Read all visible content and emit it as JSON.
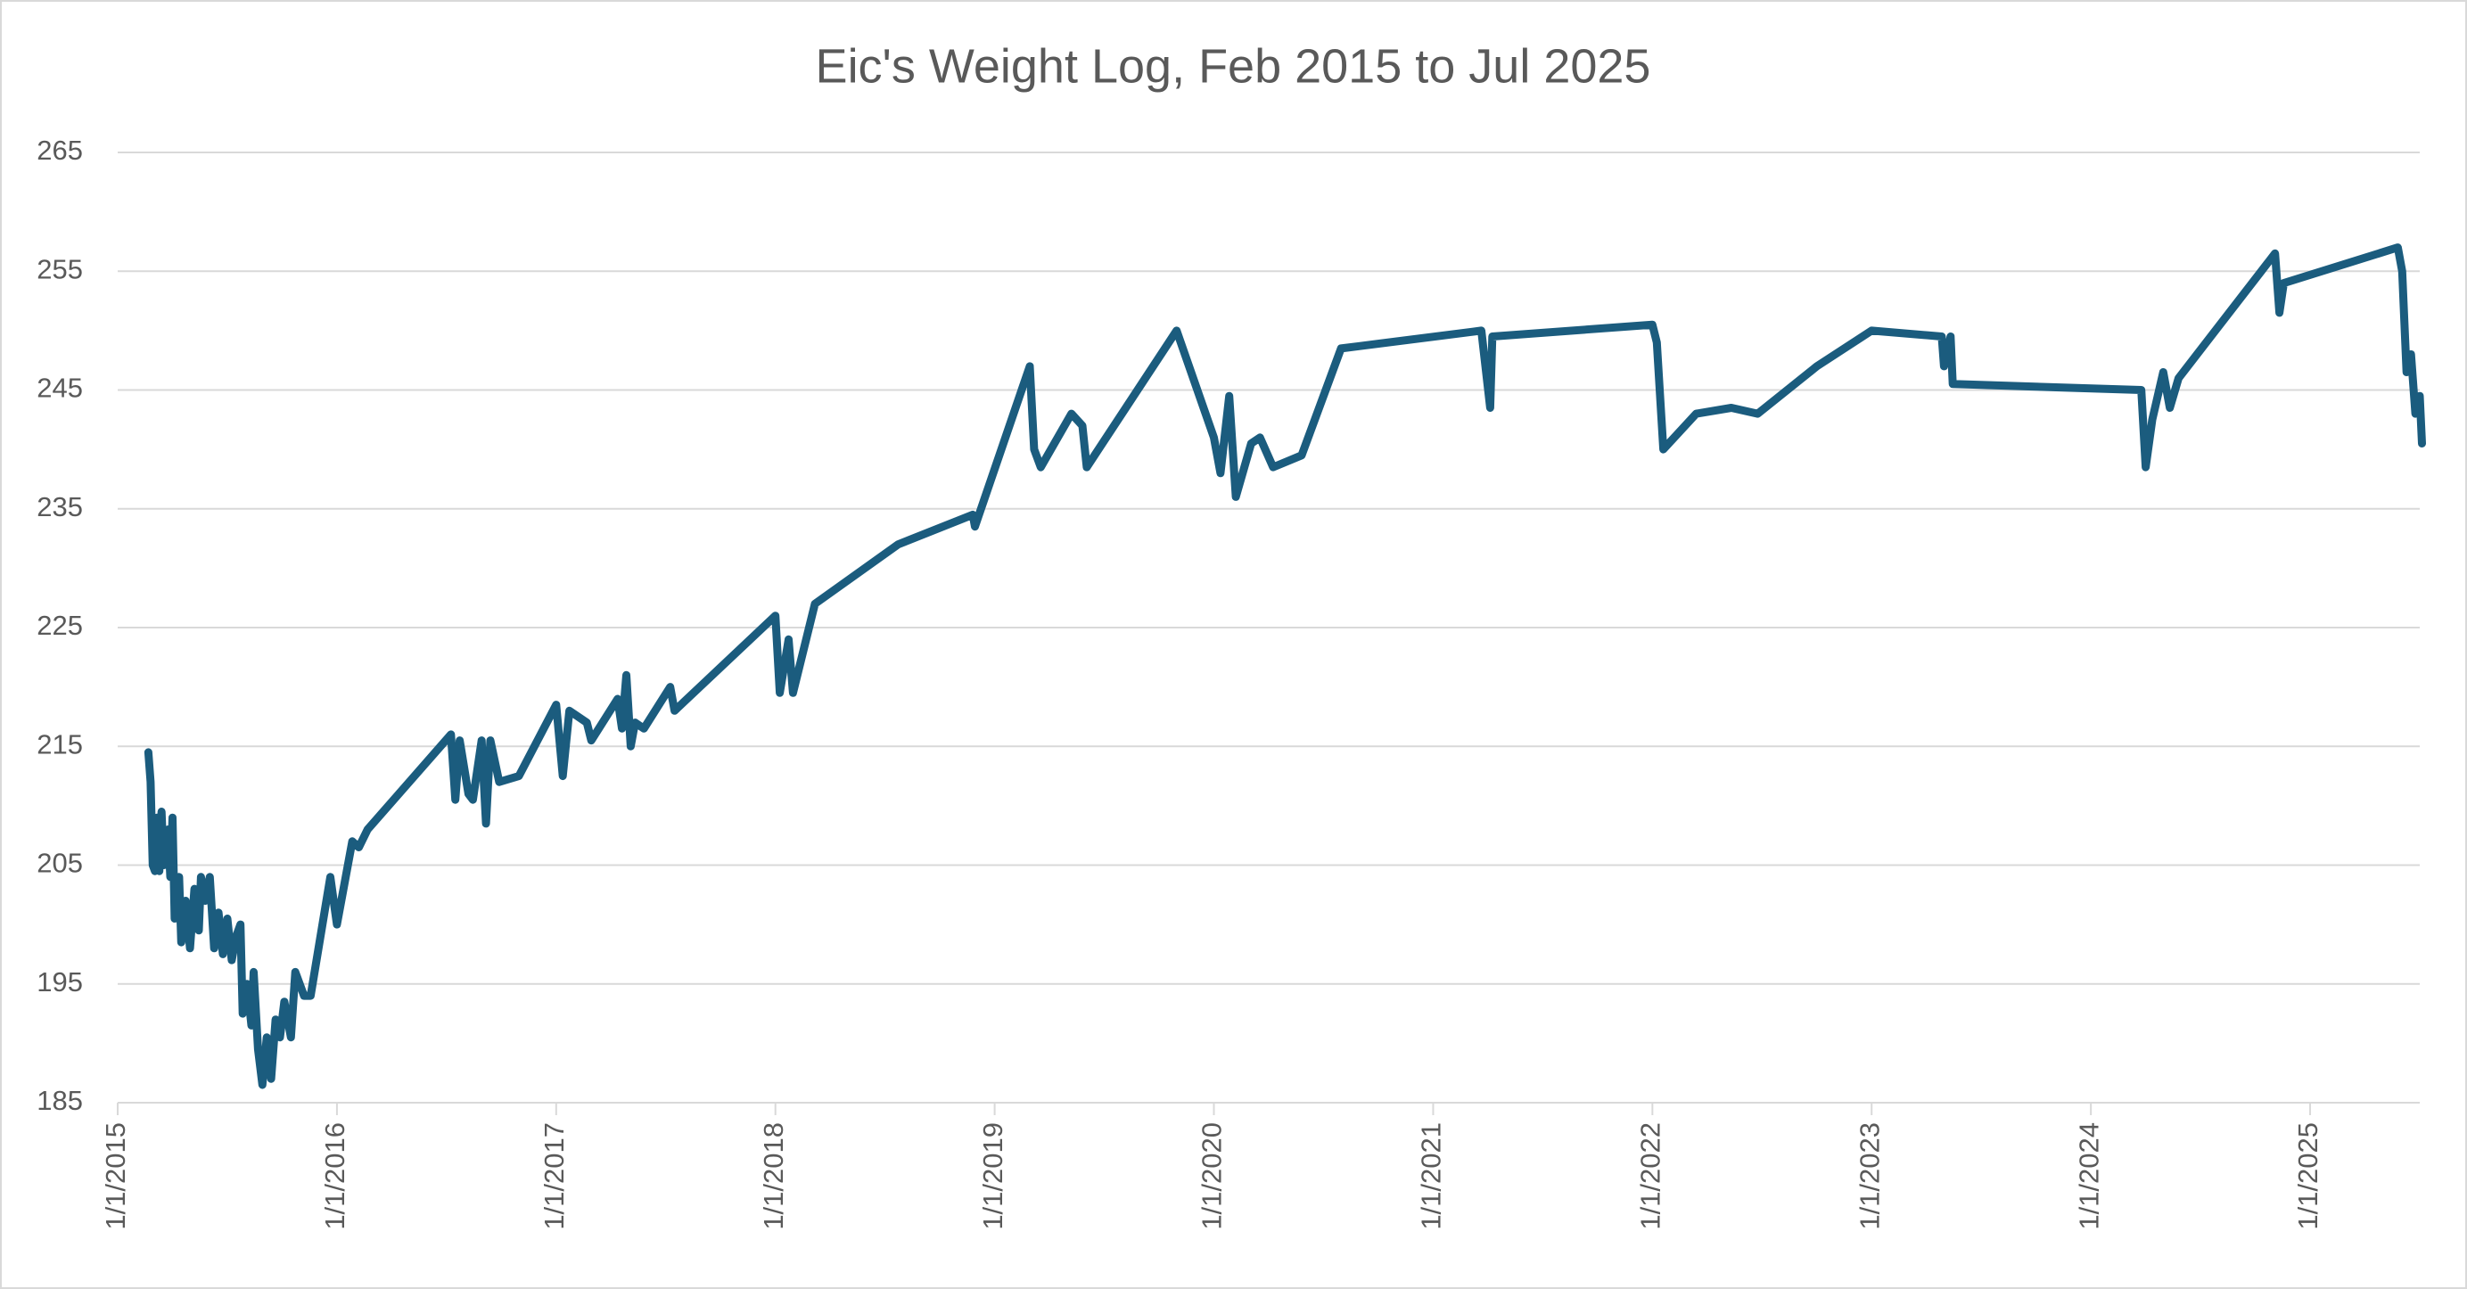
{
  "chart_data": {
    "type": "line",
    "title": "Eic's Weight Log, Feb 2015 to Jul 2025",
    "x": [
      2015.14,
      2015.15,
      2015.16,
      2015.17,
      2015.18,
      2015.19,
      2015.2,
      2015.21,
      2015.23,
      2015.24,
      2015.25,
      2015.26,
      2015.28,
      2015.29,
      2015.31,
      2015.33,
      2015.35,
      2015.37,
      2015.38,
      2015.4,
      2015.42,
      2015.44,
      2015.46,
      2015.48,
      2015.5,
      2015.52,
      2015.54,
      2015.56,
      2015.57,
      2015.59,
      2015.61,
      2015.62,
      2015.64,
      2015.66,
      2015.68,
      2015.7,
      2015.72,
      2015.74,
      2015.76,
      2015.79,
      2015.81,
      2015.85,
      2015.88,
      2015.97,
      2016.0,
      2016.07,
      2016.1,
      2016.14,
      2016.52,
      2016.54,
      2016.56,
      2016.6,
      2016.62,
      2016.66,
      2016.68,
      2016.7,
      2016.74,
      2016.83,
      2017.0,
      2017.03,
      2017.06,
      2017.14,
      2017.16,
      2017.28,
      2017.3,
      2017.32,
      2017.34,
      2017.36,
      2017.4,
      2017.52,
      2017.54,
      2018.0,
      2018.02,
      2018.06,
      2018.08,
      2018.18,
      2018.56,
      2018.9,
      2018.91,
      2019.16,
      2019.18,
      2019.21,
      2019.35,
      2019.4,
      2019.42,
      2019.83,
      2020.0,
      2020.03,
      2020.07,
      2020.1,
      2020.17,
      2020.21,
      2020.27,
      2020.4,
      2020.58,
      2021.22,
      2021.26,
      2021.27,
      2022.0,
      2022.02,
      2022.05,
      2022.2,
      2022.36,
      2022.48,
      2022.75,
      2023.0,
      2023.32,
      2023.33,
      2023.36,
      2023.37,
      2024.23,
      2024.25,
      2024.28,
      2024.33,
      2024.36,
      2024.4,
      2024.84,
      2024.86,
      2024.88,
      2025.4,
      2025.42,
      2025.44,
      2025.46,
      2025.48,
      2025.5,
      2025.51
    ],
    "series": [
      {
        "color": "#1b5c7e",
        "values": [
          214.5,
          212,
          205,
          204.5,
          209,
          204.5,
          209.5,
          205,
          208,
          204,
          209,
          200.5,
          204,
          198.5,
          202,
          198,
          203,
          199.5,
          204,
          202,
          204,
          198,
          201,
          197.5,
          200.5,
          197,
          199,
          200,
          192.5,
          195,
          191.5,
          196,
          189.5,
          186.5,
          190.5,
          187,
          192,
          190.5,
          193.5,
          190.5,
          196,
          194,
          194,
          204,
          200,
          207,
          206.5,
          208,
          216,
          210.5,
          215.5,
          211,
          210.5,
          215.5,
          208.5,
          215.5,
          212,
          212.5,
          218.5,
          212.5,
          218,
          217,
          215.5,
          219,
          216.5,
          221,
          215,
          217,
          216.5,
          220,
          218,
          226,
          219.5,
          224,
          219.5,
          227,
          232,
          234.5,
          233.5,
          247,
          240,
          238.5,
          243,
          242,
          238.5,
          250,
          241,
          238,
          244.5,
          236,
          240.5,
          241,
          238.5,
          239.5,
          248.5,
          250,
          243.5,
          249.5,
          250.5,
          249,
          240,
          243,
          243.5,
          243,
          247,
          250,
          249.5,
          247,
          249.5,
          245.5,
          245,
          238.5,
          242.5,
          246.5,
          243.5,
          246,
          256.5,
          251.5,
          254,
          257,
          255,
          246.5,
          248,
          243,
          244.5,
          240.5
        ]
      }
    ],
    "xlim": [
      2015,
      2025.5
    ],
    "xticks": [
      {
        "value": 2015,
        "label": "1/1/2015"
      },
      {
        "value": 2016,
        "label": "1/1/2016"
      },
      {
        "value": 2017,
        "label": "1/1/2017"
      },
      {
        "value": 2018,
        "label": "1/1/2018"
      },
      {
        "value": 2019,
        "label": "1/1/2019"
      },
      {
        "value": 2020,
        "label": "1/1/2020"
      },
      {
        "value": 2021,
        "label": "1/1/2021"
      },
      {
        "value": 2022,
        "label": "1/1/2022"
      },
      {
        "value": 2023,
        "label": "1/1/2023"
      },
      {
        "value": 2024,
        "label": "1/1/2024"
      },
      {
        "value": 2025,
        "label": "1/1/2025"
      }
    ],
    "ylim": [
      185,
      265
    ],
    "yticks": [
      185,
      195,
      205,
      215,
      225,
      235,
      245,
      255,
      265
    ],
    "grid": true
  }
}
